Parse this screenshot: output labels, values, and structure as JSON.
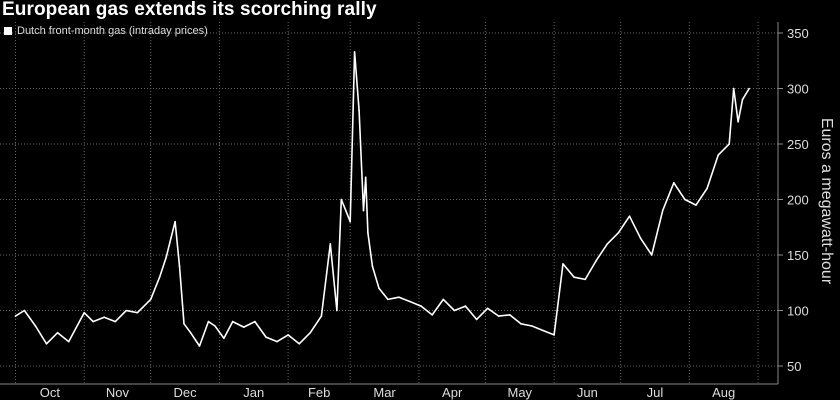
{
  "chart_data": {
    "type": "line",
    "title": "European gas extends its scorching rally",
    "ylabel": "Euros a megawatt-hour",
    "ylim": [
      40,
      360
    ],
    "yticks": [
      50,
      100,
      150,
      200,
      250,
      300,
      350
    ],
    "x_tick_labels": [
      "Oct",
      "Nov",
      "Dec",
      "Jan",
      "Feb",
      "Mar",
      "Apr",
      "May",
      "Jun",
      "Jul",
      "Aug"
    ],
    "grid": true,
    "legend_position": "top-left",
    "series": [
      {
        "name": "Dutch front-month gas (intraday prices)",
        "color": "#ffffff",
        "x": [
          "2022-10-01",
          "2022-10-05",
          "2022-10-10",
          "2022-10-15",
          "2022-10-20",
          "2022-10-25",
          "2022-11-01",
          "2022-11-05",
          "2022-11-10",
          "2022-11-15",
          "2022-11-20",
          "2022-11-25",
          "2022-12-01",
          "2022-12-05",
          "2022-12-08",
          "2022-12-12",
          "2022-12-14",
          "2022-12-16",
          "2022-12-19",
          "2022-12-23",
          "2022-12-27",
          "2022-12-30",
          "2023-01-03",
          "2023-01-07",
          "2023-01-12",
          "2023-01-17",
          "2023-01-22",
          "2023-01-27",
          "2023-02-01",
          "2023-02-06",
          "2023-02-11",
          "2023-02-16",
          "2023-02-20",
          "2023-02-23",
          "2023-02-25",
          "2023-02-27",
          "2023-03-01",
          "2023-03-03",
          "2023-03-05",
          "2023-03-07",
          "2023-03-08",
          "2023-03-09",
          "2023-03-11",
          "2023-03-14",
          "2023-03-18",
          "2023-03-23",
          "2023-03-28",
          "2023-04-02",
          "2023-04-07",
          "2023-04-12",
          "2023-04-17",
          "2023-04-22",
          "2023-04-27",
          "2023-05-02",
          "2023-05-07",
          "2023-05-12",
          "2023-05-17",
          "2023-05-22",
          "2023-05-27",
          "2023-06-01",
          "2023-06-05",
          "2023-06-10",
          "2023-06-15",
          "2023-06-20",
          "2023-06-25",
          "2023-06-30",
          "2023-07-05",
          "2023-07-10",
          "2023-07-15",
          "2023-07-20",
          "2023-07-25",
          "2023-07-30",
          "2023-08-04",
          "2023-08-09",
          "2023-08-14",
          "2023-08-17",
          "2023-08-19",
          "2023-08-21",
          "2023-08-23",
          "2023-08-25",
          "2023-08-28"
        ],
        "values": [
          95,
          100,
          86,
          70,
          80,
          72,
          98,
          90,
          94,
          90,
          100,
          98,
          110,
          130,
          148,
          180,
          140,
          88,
          80,
          68,
          90,
          86,
          75,
          90,
          85,
          90,
          76,
          72,
          78,
          70,
          80,
          95,
          160,
          100,
          200,
          190,
          180,
          333,
          280,
          190,
          220,
          170,
          140,
          120,
          110,
          112,
          108,
          104,
          96,
          110,
          100,
          104,
          92,
          102,
          95,
          96,
          88,
          86,
          82,
          78,
          142,
          130,
          128,
          145,
          160,
          170,
          185,
          165,
          150,
          190,
          215,
          200,
          195,
          210,
          240,
          246,
          250,
          300,
          270,
          290,
          300
        ]
      }
    ]
  }
}
